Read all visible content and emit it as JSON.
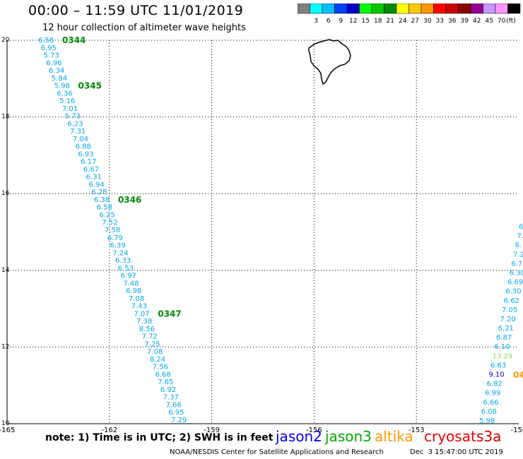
{
  "header": {
    "title": "00:00 – 11:59 UTC 11/01/2019",
    "subtitle": "12 hour collection of altimeter wave heights"
  },
  "legend": {
    "unit": "(ft)",
    "bins": [
      {
        "color": "#808080",
        "label": ""
      },
      {
        "color": "#00ffff",
        "label": "3"
      },
      {
        "color": "#00bfff",
        "label": "6"
      },
      {
        "color": "#0040ff",
        "label": "9"
      },
      {
        "color": "#0000c8",
        "label": "12"
      },
      {
        "color": "#00ff00",
        "label": "15"
      },
      {
        "color": "#00c800",
        "label": "18"
      },
      {
        "color": "#008c00",
        "label": "21"
      },
      {
        "color": "#ffff00",
        "label": "24"
      },
      {
        "color": "#ffc800",
        "label": "27"
      },
      {
        "color": "#ff9600",
        "label": "30"
      },
      {
        "color": "#ff0000",
        "label": "33"
      },
      {
        "color": "#c80000",
        "label": "36"
      },
      {
        "color": "#8c0000",
        "label": "39"
      },
      {
        "color": "#960096",
        "label": "42"
      },
      {
        "color": "#c896ff",
        "label": "45"
      },
      {
        "color": "#ff96ff",
        "label": "70"
      },
      {
        "color": "#000000",
        "label": ""
      }
    ]
  },
  "map": {
    "x_range": [
      -165,
      -150
    ],
    "y_range": [
      10,
      20
    ],
    "x_ticks": [
      {
        "value": -165,
        "label": "-165"
      },
      {
        "value": -162,
        "label": "-162"
      },
      {
        "value": -159,
        "label": "-159"
      },
      {
        "value": -156,
        "label": "-156"
      },
      {
        "value": -153,
        "label": "-153"
      },
      {
        "value": -150,
        "label": "-150"
      }
    ],
    "y_ticks": [
      {
        "value": 10,
        "label": "10"
      },
      {
        "value": 12,
        "label": "12"
      },
      {
        "value": 14,
        "label": "14"
      },
      {
        "value": 16,
        "label": "16"
      },
      {
        "value": 18,
        "label": "18"
      },
      {
        "value": 20,
        "label": "20"
      }
    ]
  },
  "track1": {
    "color": "#00aaee",
    "values": [
      "6.58",
      "6.95",
      "5.73",
      "6.96",
      "6.34",
      "5.84",
      "5.98",
      "6.36",
      "5.16",
      "7.01",
      "5.73",
      "6.23",
      "7.31",
      "7.04",
      "6.88",
      "6.93",
      "6.17",
      "6.67",
      "6.31",
      "6.94",
      "6.28",
      "6.38",
      "6.58",
      "6.25",
      "7.52",
      "7.58",
      "6.79",
      "6.39",
      "7.24",
      "6.33",
      "6.53",
      "6.97",
      "7.48",
      "6.98",
      "7.08",
      "7.43",
      "7.07",
      "7.38",
      "8.56",
      "7.72",
      "7.25",
      "7.08",
      "8.24",
      "7.56",
      "6.68",
      "7.65",
      "6.92",
      "7.37",
      "7.66",
      "6.95",
      "7.29"
    ],
    "times": [
      {
        "label": "0344",
        "index": 0
      },
      {
        "label": "0345",
        "index": 6
      },
      {
        "label": "0346",
        "index": 21
      },
      {
        "label": "0347",
        "index": 36
      }
    ]
  },
  "track2": {
    "values": [
      {
        "text": "6.",
        "color": "#00aaee"
      },
      {
        "text": "7.",
        "color": "#00aaee"
      },
      {
        "text": "6.",
        "color": "#00aaee"
      },
      {
        "text": "7.2",
        "color": "#00aaee"
      },
      {
        "text": "6.7",
        "color": "#00aaee"
      },
      {
        "text": "6.30",
        "color": "#00aaee"
      },
      {
        "text": "6.69",
        "color": "#00aaee"
      },
      {
        "text": "6.30",
        "color": "#00aaee"
      },
      {
        "text": "6.62",
        "color": "#00aaee"
      },
      {
        "text": "7.05",
        "color": "#00aaee"
      },
      {
        "text": "7.20",
        "color": "#00aaee"
      },
      {
        "text": "6.21",
        "color": "#00aaee"
      },
      {
        "text": "6.87",
        "color": "#00aaee"
      },
      {
        "text": "6.10",
        "color": "#00aaee"
      },
      {
        "text": "13.29",
        "color": "#88dd55"
      },
      {
        "text": "6.63",
        "color": "#00aaee"
      },
      {
        "text": "9.10",
        "color": "#0000cc"
      },
      {
        "text": "6.82",
        "color": "#00aaee"
      },
      {
        "text": "6.99",
        "color": "#00aaee"
      },
      {
        "text": "6.66",
        "color": "#00aaee"
      },
      {
        "text": "6.08",
        "color": "#00aaee"
      },
      {
        "text": "5.98",
        "color": "#00aaee"
      }
    ],
    "time_label": "04"
  },
  "footer": {
    "note": "note: 1) Time is in UTC; 2) SWH is in feet",
    "satellites": [
      {
        "name": "jason2",
        "color": "#0000ee"
      },
      {
        "name": "jason3",
        "color": "#00aa00"
      },
      {
        "name": "altika",
        "color": "#ff9900"
      },
      {
        "name": "cryosat",
        "color": "#ee0000"
      },
      {
        "name": "s3a",
        "color": "#cc0000"
      }
    ],
    "credit": "NOAA/NESDIS Center for Satellite Applications and Research",
    "timestamp": "Dec  3 15:47:00 UTC 2019"
  }
}
